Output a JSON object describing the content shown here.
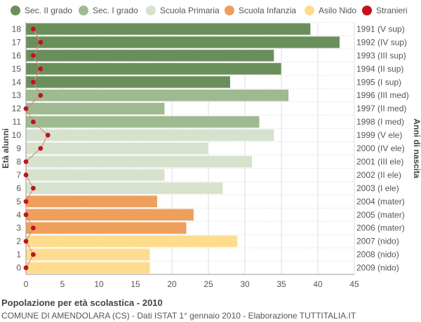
{
  "footer": {
    "title": "Popolazione per età scolastica - 2010",
    "subtitle": "COMUNE DI AMENDOLARA (CS) - Dati ISTAT 1° gennaio 2010 - Elaborazione TUTTITALIA.IT"
  },
  "legend": [
    {
      "label": "Sec. II grado",
      "color": "#6b8f5a"
    },
    {
      "label": "Sec. I grado",
      "color": "#9fba91"
    },
    {
      "label": "Scuola Primaria",
      "color": "#d6e2cc"
    },
    {
      "label": "Scuola Infanzia",
      "color": "#ee9f5c"
    },
    {
      "label": "Asilo Nido",
      "color": "#fddc8e"
    },
    {
      "label": "Stranieri",
      "color": "#c0141c"
    }
  ],
  "chart_data": {
    "type": "bar",
    "orientation": "horizontal",
    "ylabel_left": "Età alunni",
    "ylabel_right": "Anni di nascita",
    "xlim": [
      0,
      45
    ],
    "xticks": [
      0,
      5,
      10,
      15,
      20,
      25,
      30,
      35,
      40,
      45
    ],
    "grid": true,
    "categories": [
      "18",
      "17",
      "16",
      "15",
      "14",
      "13",
      "12",
      "11",
      "10",
      "9",
      "8",
      "7",
      "6",
      "5",
      "4",
      "3",
      "2",
      "1",
      "0"
    ],
    "birth_years": [
      "1991 (V sup)",
      "1992 (IV sup)",
      "1993 (III sup)",
      "1994 (II sup)",
      "1995 (I sup)",
      "1996 (III med)",
      "1997 (II med)",
      "1998 (I med)",
      "1999 (V ele)",
      "2000 (IV ele)",
      "2001 (III ele)",
      "2002 (II ele)",
      "2003 (I ele)",
      "2004 (mater)",
      "2005 (mater)",
      "2006 (mater)",
      "2007 (nido)",
      "2008 (nido)",
      "2009 (nido)"
    ],
    "groups": [
      "Sec. II grado",
      "Sec. II grado",
      "Sec. II grado",
      "Sec. II grado",
      "Sec. II grado",
      "Sec. I grado",
      "Sec. I grado",
      "Sec. I grado",
      "Scuola Primaria",
      "Scuola Primaria",
      "Scuola Primaria",
      "Scuola Primaria",
      "Scuola Primaria",
      "Scuola Infanzia",
      "Scuola Infanzia",
      "Scuola Infanzia",
      "Asilo Nido",
      "Asilo Nido",
      "Asilo Nido"
    ],
    "values": [
      39,
      43,
      34,
      35,
      28,
      36,
      19,
      32,
      34,
      25,
      31,
      19,
      27,
      18,
      23,
      22,
      29,
      17,
      17
    ],
    "stranieri": [
      1,
      2,
      1,
      2,
      1,
      2,
      0,
      1,
      3,
      2,
      0,
      0,
      1,
      0,
      0,
      1,
      0,
      1,
      0
    ]
  }
}
